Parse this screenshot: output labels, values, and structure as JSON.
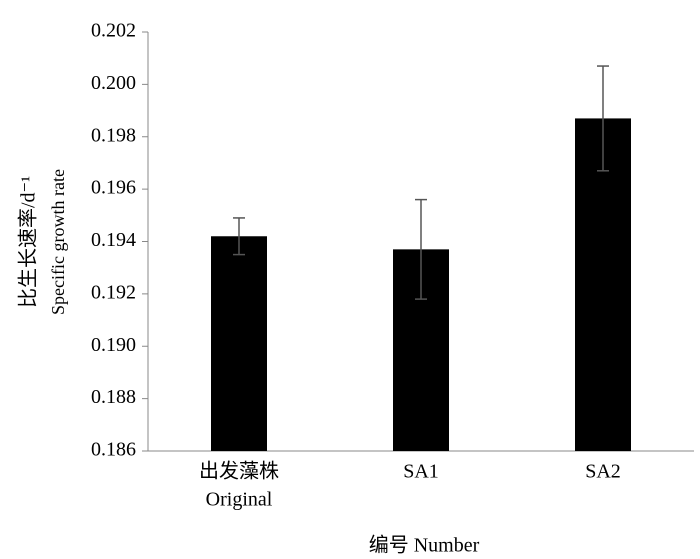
{
  "chart_data": {
    "type": "bar",
    "categories": [
      [
        "出发藻株",
        "Original"
      ],
      [
        "SA1"
      ],
      [
        "SA2"
      ]
    ],
    "values": [
      0.1942,
      0.1937,
      0.1987
    ],
    "errors": [
      0.0007,
      0.0019,
      0.002
    ],
    "color": "#000000",
    "error_color": "#555555",
    "y_label": [
      "比生长速率/d⁻¹",
      "Specific growth rate"
    ],
    "x_label": "编号 Number",
    "ylim": [
      0.186,
      0.202
    ],
    "yticks": [
      0.186,
      0.188,
      {
        "value": 0.19,
        "label": "0.190"
      },
      0.192,
      0.194,
      0.196,
      0.198,
      {
        "value": 0.2,
        "label": "0.200"
      },
      0.202
    ],
    "grid": false
  }
}
